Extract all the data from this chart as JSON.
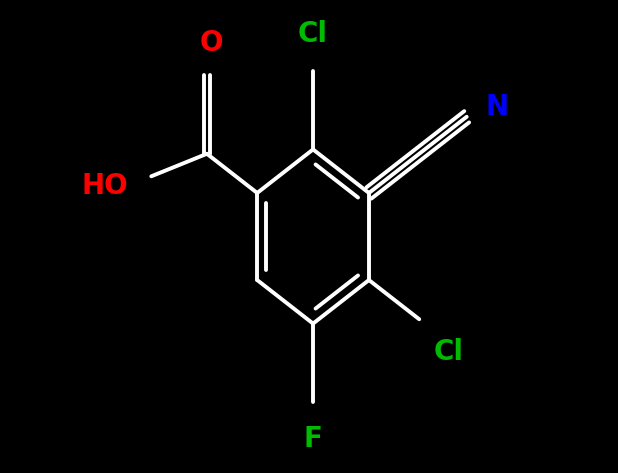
{
  "background_color": "#000000",
  "bond_color": "#ffffff",
  "bond_width": 2.8,
  "figsize": [
    6.18,
    4.73
  ],
  "dpi": 100,
  "atom_colors": {
    "O": "#ff0000",
    "N": "#0000ff",
    "Cl": "#00bb00",
    "F": "#00bb00",
    "C": "#ffffff"
  },
  "label_fontsize": 20
}
